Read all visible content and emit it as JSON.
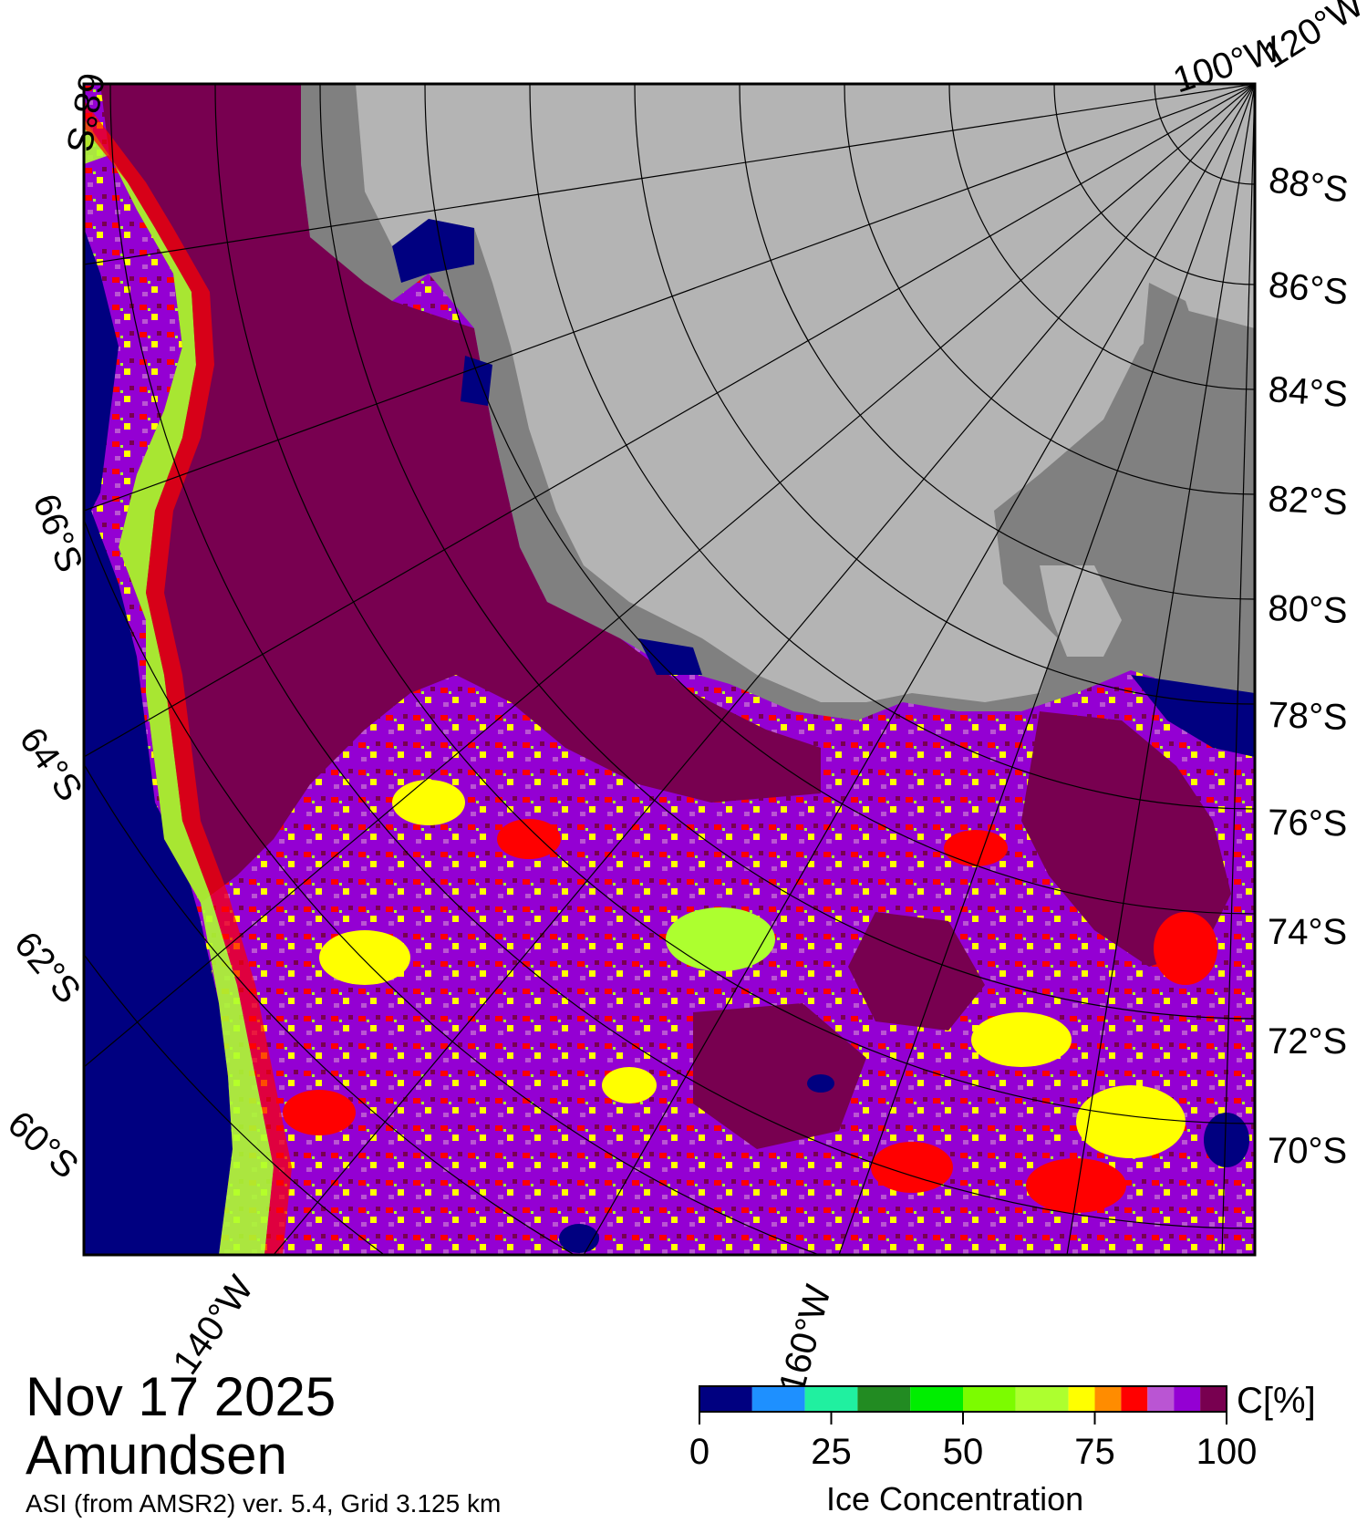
{
  "date": "Nov 17 2025",
  "region": "Amundsen",
  "source": "ASI (from AMSR2) ver. 5.4,  Grid 3.125 km",
  "legend": {
    "unit": "C[%]",
    "title": "Ice Concentration",
    "ticks": [
      "0",
      "25",
      "50",
      "75",
      "100"
    ],
    "tick_values": [
      0,
      25,
      50,
      75,
      100
    ],
    "bins": [
      {
        "from": 0,
        "to": 10,
        "color": "#000080"
      },
      {
        "from": 10,
        "to": 20,
        "color": "#1e90ff"
      },
      {
        "from": 20,
        "to": 30,
        "color": "#20f0a0"
      },
      {
        "from": 30,
        "to": 40,
        "color": "#228b22"
      },
      {
        "from": 40,
        "to": 50,
        "color": "#00ee00"
      },
      {
        "from": 50,
        "to": 60,
        "color": "#7cfc00"
      },
      {
        "from": 60,
        "to": 70,
        "color": "#adff2f"
      },
      {
        "from": 70,
        "to": 75,
        "color": "#ffff00"
      },
      {
        "from": 75,
        "to": 80,
        "color": "#ff8c00"
      },
      {
        "from": 80,
        "to": 85,
        "color": "#ff0000"
      },
      {
        "from": 85,
        "to": 90,
        "color": "#ba55d3"
      },
      {
        "from": 90,
        "to": 95,
        "color": "#9400d3"
      },
      {
        "from": 95,
        "to": 100,
        "color": "#780050"
      }
    ]
  },
  "colors": {
    "open_water": "#000080",
    "land_ice_sheet": "#b4b4b4",
    "ice_shelf": "#808080",
    "full_ice": "#780050",
    "high_ice": "#9400d3",
    "mid_ice": "#ba55d3",
    "moderate_ice": "#ff0000",
    "low_ice": "#ffff00",
    "lower_ice": "#adff2f"
  },
  "lat_labels_right": [
    "88°S",
    "86°S",
    "84°S",
    "82°S",
    "80°S",
    "78°S",
    "76°S",
    "74°S",
    "72°S",
    "70°S"
  ],
  "lat_labels_left": [
    "68°S",
    "66°S",
    "64°S",
    "62°S",
    "60°S"
  ],
  "lon_labels_top": [
    "100°W",
    "120°W"
  ],
  "lon_labels_bottom": [
    "140°W",
    "160°W"
  ]
}
